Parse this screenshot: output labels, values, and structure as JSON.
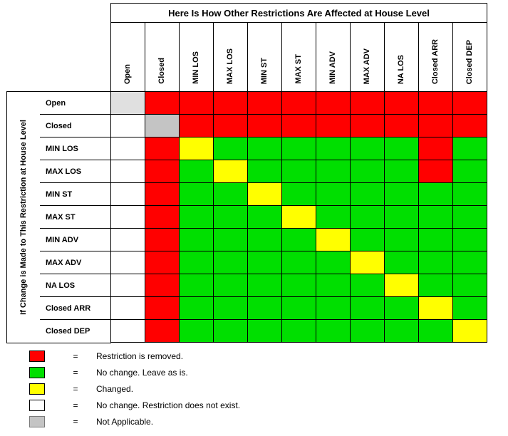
{
  "title": "Here Is How Other Restrictions Are Affected at House Level",
  "side_label": "If Change is Made to This Restriction at House Level",
  "columns": [
    "Open",
    "Closed",
    "MIN LOS",
    "MAX LOS",
    "MIN ST",
    "MAX ST",
    "MIN ADV",
    "MAX ADV",
    "NA LOS",
    "Closed ARR",
    "Closed DEP"
  ],
  "rows": [
    "Open",
    "Closed",
    "MIN LOS",
    "MAX LOS",
    "MIN ST",
    "MAX ST",
    "MIN ADV",
    "MAX ADV",
    "NA LOS",
    "Closed ARR",
    "Closed DEP"
  ],
  "matrix": [
    [
      "L",
      "R",
      "R",
      "R",
      "R",
      "R",
      "R",
      "R",
      "R",
      "R",
      "R"
    ],
    [
      "W",
      "N",
      "R",
      "R",
      "R",
      "R",
      "R",
      "R",
      "R",
      "R",
      "R"
    ],
    [
      "W",
      "R",
      "Y",
      "G",
      "G",
      "G",
      "G",
      "G",
      "G",
      "R",
      "G"
    ],
    [
      "W",
      "R",
      "G",
      "Y",
      "G",
      "G",
      "G",
      "G",
      "G",
      "R",
      "G"
    ],
    [
      "W",
      "R",
      "G",
      "G",
      "Y",
      "G",
      "G",
      "G",
      "G",
      "G",
      "G"
    ],
    [
      "W",
      "R",
      "G",
      "G",
      "G",
      "Y",
      "G",
      "G",
      "G",
      "G",
      "G"
    ],
    [
      "W",
      "R",
      "G",
      "G",
      "G",
      "G",
      "Y",
      "G",
      "G",
      "G",
      "G"
    ],
    [
      "W",
      "R",
      "G",
      "G",
      "G",
      "G",
      "G",
      "Y",
      "G",
      "G",
      "G"
    ],
    [
      "W",
      "R",
      "G",
      "G",
      "G",
      "G",
      "G",
      "G",
      "Y",
      "G",
      "G"
    ],
    [
      "W",
      "R",
      "G",
      "G",
      "G",
      "G",
      "G",
      "G",
      "G",
      "Y",
      "G"
    ],
    [
      "W",
      "R",
      "G",
      "G",
      "G",
      "G",
      "G",
      "G",
      "G",
      "G",
      "Y"
    ]
  ],
  "colors": {
    "R": "#FF0000",
    "G": "#00DF00",
    "Y": "#FFFF00",
    "W": "#FFFFFF",
    "N": "#C4C4C4",
    "L": "#E0E0E0"
  },
  "legend_equals": "=",
  "legend": [
    {
      "code": "R",
      "label": "Restriction is removed."
    },
    {
      "code": "G",
      "label": "No change. Leave as is."
    },
    {
      "code": "Y",
      "label": "Changed."
    },
    {
      "code": "W",
      "label": "No change. Restriction does not exist."
    },
    {
      "code": "N",
      "label": "Not Applicable."
    }
  ]
}
